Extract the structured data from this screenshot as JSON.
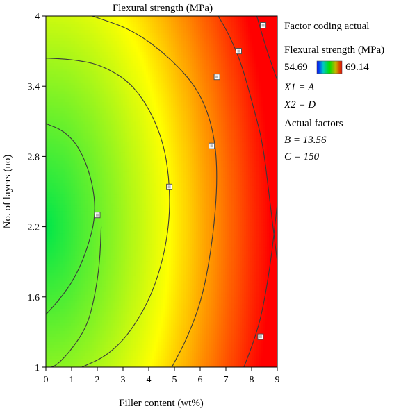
{
  "chart_data": {
    "type": "heatmap",
    "title": "Flexural strength (MPa)",
    "xlabel": "Filler content (wt%)",
    "ylabel": "No. of layers (no)",
    "xlim": [
      0,
      9
    ],
    "ylim": [
      1,
      4
    ],
    "x_ticks": [
      "0",
      "1",
      "2",
      "3",
      "4",
      "5",
      "6",
      "7",
      "8",
      "9"
    ],
    "y_ticks": [
      "1",
      "1.6",
      "2.2",
      "2.8",
      "3.4",
      "4"
    ],
    "response": {
      "min": 54.69,
      "max": 69.14,
      "min_x": 0,
      "min_y": 2.2,
      "low_color": "#00e64a",
      "mid_color": "#ffff00",
      "high_color": "#ff0000"
    },
    "contours": [
      {
        "level": 57,
        "points": [
          [
            2.15,
            2.2
          ],
          [
            2.1,
            1.9
          ],
          [
            1.9,
            1.6
          ],
          [
            1.6,
            1.35
          ],
          [
            1.0,
            1.15
          ],
          [
            0.35,
            1.0
          ],
          [
            0,
            1.0
          ]
        ]
      },
      {
        "level": 59.5,
        "points": [
          [
            0,
            1.45
          ],
          [
            0.5,
            1.57
          ],
          [
            1.1,
            1.75
          ],
          [
            1.6,
            2.0
          ],
          [
            1.95,
            2.3
          ],
          [
            1.8,
            2.6
          ],
          [
            1.3,
            2.88
          ],
          [
            0.7,
            3.02
          ],
          [
            0,
            3.08
          ]
        ]
      },
      {
        "level": 62,
        "points": [
          [
            1.4,
            1.0
          ],
          [
            2.4,
            1.1
          ],
          [
            3.3,
            1.3
          ],
          [
            4.2,
            1.65
          ],
          [
            4.75,
            2.1
          ],
          [
            4.85,
            2.55
          ],
          [
            4.5,
            3.0
          ],
          [
            3.5,
            3.4
          ],
          [
            2.2,
            3.58
          ],
          [
            1.0,
            3.63
          ],
          [
            0,
            3.64
          ]
        ]
      },
      {
        "level": 64.5,
        "points": [
          [
            4.9,
            1.0
          ],
          [
            5.5,
            1.25
          ],
          [
            6.1,
            1.6
          ],
          [
            6.5,
            2.1
          ],
          [
            6.68,
            2.6
          ],
          [
            6.55,
            3.0
          ],
          [
            6.0,
            3.35
          ],
          [
            4.9,
            3.63
          ],
          [
            3.4,
            3.88
          ],
          [
            1.8,
            4.0
          ]
        ]
      },
      {
        "level": 67,
        "points": [
          [
            6.7,
            4.0
          ],
          [
            7.1,
            3.85
          ],
          [
            7.6,
            3.6
          ],
          [
            8.1,
            3.2
          ],
          [
            8.45,
            2.9
          ],
          [
            8.72,
            2.4
          ],
          [
            9.0,
            1.9
          ]
        ]
      },
      {
        "level": 68,
        "points": [
          [
            8.2,
            4.0
          ],
          [
            8.6,
            3.7
          ],
          [
            9.0,
            3.45
          ]
        ]
      },
      {
        "level": 68.5,
        "points": [
          [
            7.7,
            1.0
          ],
          [
            8.05,
            1.2
          ],
          [
            8.4,
            1.45
          ],
          [
            8.75,
            1.9
          ],
          [
            9.0,
            2.4
          ]
        ]
      }
    ],
    "design_points": [
      {
        "x": 2.0,
        "y": 2.3
      },
      {
        "x": 4.8,
        "y": 2.54
      },
      {
        "x": 6.45,
        "y": 2.89
      },
      {
        "x": 6.65,
        "y": 3.48
      },
      {
        "x": 7.5,
        "y": 3.7
      },
      {
        "x": 8.45,
        "y": 3.92
      },
      {
        "x": 8.35,
        "y": 1.26
      }
    ],
    "legend": {
      "header": "Factor coding actual",
      "response_label": "Flexural strength (MPa)",
      "low_value": "54.69",
      "high_value": "69.14",
      "low_value_color": "#0000ee",
      "high_value_color": "#ee0000",
      "x1_label": "X1 = A",
      "x2_label": "X2 = D",
      "actual_factors_label": "Actual factors",
      "factor_b": "B = 13.56",
      "factor_c": "C = 150",
      "placement": "right"
    }
  }
}
